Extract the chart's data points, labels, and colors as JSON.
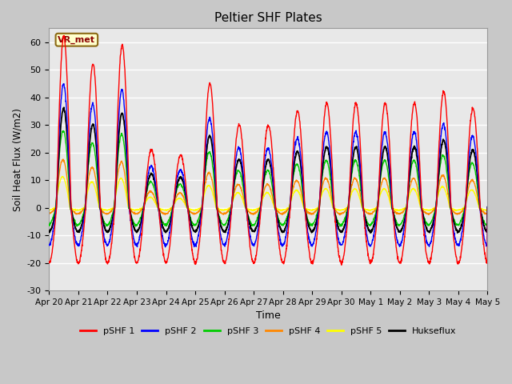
{
  "title": "Peltier SHF Plates",
  "xlabel": "Time",
  "ylabel": "Soil Heat Flux (W/m2)",
  "ylim": [
    -30,
    65
  ],
  "yticks": [
    -30,
    -20,
    -10,
    0,
    10,
    20,
    30,
    40,
    50,
    60
  ],
  "annotation_text": "VR_met",
  "series_colors": {
    "pSHF 1": "#ff0000",
    "pSHF 2": "#0000ff",
    "pSHF 3": "#00cc00",
    "pSHF 4": "#ff8800",
    "pSHF 5": "#ffff00",
    "Hukseflux": "#000000"
  },
  "xtick_labels": [
    "Apr 20",
    "Apr 21",
    "Apr 22",
    "Apr 23",
    "Apr 24",
    "Apr 25",
    "Apr 26",
    "Apr 27",
    "Apr 28",
    "Apr 29",
    "Apr 30",
    "May 1",
    "May 2",
    "May 3",
    "May 4",
    "May 5"
  ],
  "num_days": 15,
  "day_peaks_shf1": [
    62,
    52,
    59,
    21,
    19,
    45,
    30,
    30,
    35,
    38,
    38,
    38,
    38,
    42,
    36
  ],
  "night_trough": -20
}
